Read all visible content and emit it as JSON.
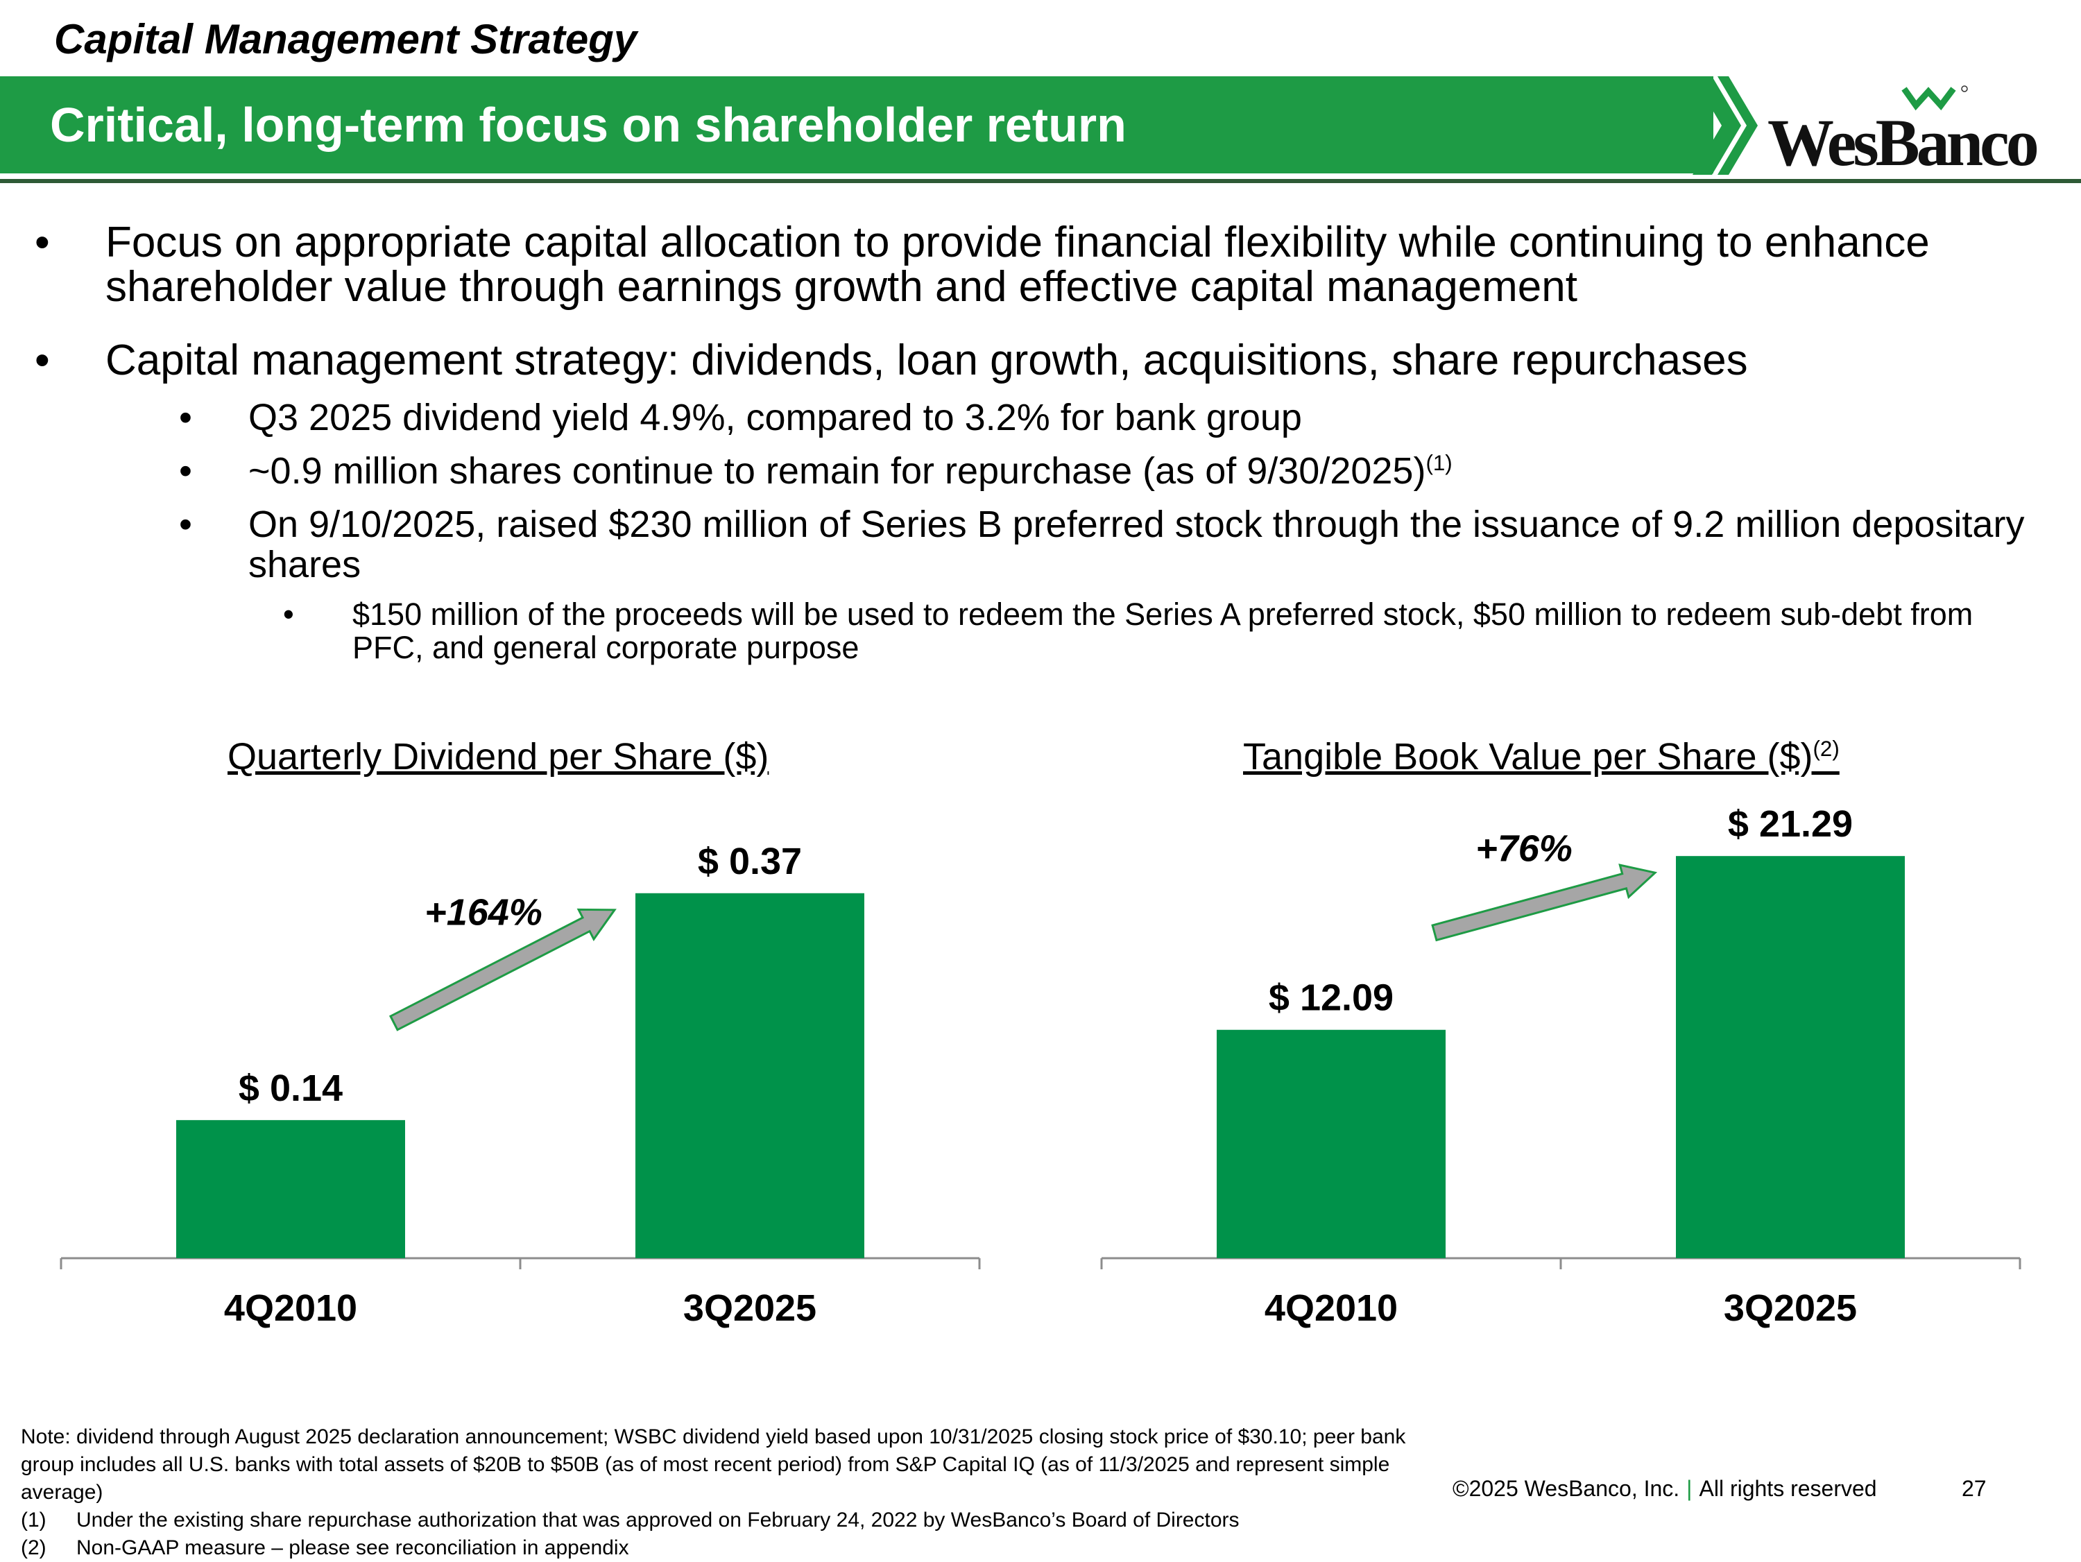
{
  "header": {
    "section_title": "Capital Management Strategy",
    "banner_title": "Critical, long-term focus on shareholder return",
    "logo_text": "WesBanco",
    "logo_icon": "wesbanco-w-mark-icon"
  },
  "bullets": {
    "b1": "Focus on appropriate capital allocation to provide financial flexibility while continuing to enhance shareholder value through earnings growth and effective capital management",
    "b2": "Capital management strategy:  dividends, loan growth, acquisitions, share repurchases",
    "b2_sub1": "Q3 2025 dividend yield 4.9%, compared to 3.2% for bank group",
    "b2_sub2": "~0.9 million shares continue to remain for repurchase (as of 9/30/2025)",
    "b2_sub2_footnote": "(1)",
    "b2_sub3": "On 9/10/2025, raised $230 million of Series B preferred stock through the issuance of 9.2 million depositary shares",
    "b2_sub3_sub1": "$150 million of the proceeds will be used to redeem the Series A preferred stock, $50 million to redeem sub-debt from PFC, and general corporate purpose"
  },
  "chart_data": [
    {
      "type": "bar",
      "title": "Quarterly Dividend per Share ($)",
      "categories": [
        "4Q2010",
        "3Q2025"
      ],
      "values": [
        0.14,
        0.37
      ],
      "value_labels": [
        "$ 0.14",
        "$ 0.37"
      ],
      "annotation": "+164%",
      "ylim": [
        0,
        0.45
      ],
      "color": "#00924a"
    },
    {
      "type": "bar",
      "title": "Tangible Book Value per Share ($)",
      "title_footnote": "(2)",
      "categories": [
        "4Q2010",
        "3Q2025"
      ],
      "values": [
        12.09,
        21.29
      ],
      "value_labels": [
        "$ 12.09",
        "$ 21.29"
      ],
      "annotation": "+76%",
      "ylim": [
        0,
        23.5
      ],
      "color": "#00924a"
    }
  ],
  "footer": {
    "note": "Note: dividend through August 2025 declaration announcement; WSBC dividend yield based upon 10/31/2025 closing stock price of $30.10; peer bank group includes all U.S. banks with total assets of $20B to $50B (as of most recent period) from S&P Capital IQ (as of 11/3/2025 and represent simple average)",
    "fn1_num": "(1)",
    "fn1": "Under the existing share repurchase authorization that was approved on February 24, 2022 by WesBanco’s Board of Directors",
    "fn2_num": "(2)",
    "fn2": "Non-GAAP measure – please see reconciliation in appendix",
    "copyright": "©2025 WesBanco, Inc.",
    "separator": "|",
    "rights": "All rights reserved",
    "page_number": "27"
  },
  "colors": {
    "brand_green": "#1e9b45",
    "bar_green": "#00924a",
    "arrow_fill": "#a6a6a6",
    "arrow_stroke": "#1e9b45"
  }
}
